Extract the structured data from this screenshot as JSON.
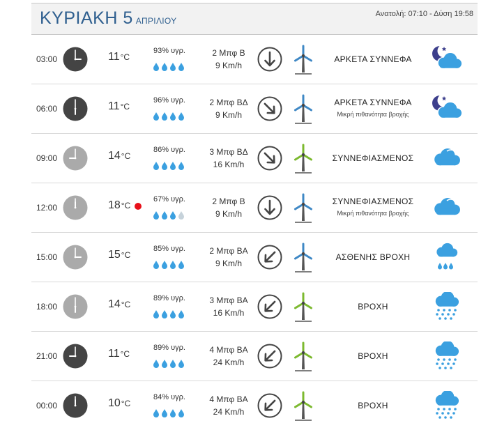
{
  "header": {
    "day": "ΚΥΡΙΑΚΗ 5",
    "month": "ΑΠΡΙΛΙΟΥ",
    "sun": "Ανατολή: 07:10 - Δύση 19:58"
  },
  "colors": {
    "title": "#2f5f8f",
    "clock_night": "#444444",
    "clock_day": "#aaaaaa",
    "drop": "#3ba0e0",
    "drop_empty": "#c6d2da",
    "turbine_blue": "#3f88c5",
    "turbine_green": "#7cb92f",
    "cloud": "#3ba0e0",
    "moon": "#3d3f8c",
    "hot": "#e8101a"
  },
  "units": {
    "celsius": "°C"
  },
  "rows": [
    {
      "time": "03:00",
      "clock_icon": "clock-night-icon",
      "hour": 3,
      "temp": "11",
      "hot": false,
      "humidity": "93% υγρ.",
      "drops": 4,
      "beaufort": "2 Μπφ Β",
      "speed": "9 Km/h",
      "arrow_icon": "arrow-down-icon",
      "arrow_deg": 0,
      "turbine": "blue",
      "condition": "ΑΡΚΕΤΑ ΣΥΝΝΕΦΑ",
      "note": "",
      "weather_icon": "night-cloud-icon"
    },
    {
      "time": "06:00",
      "clock_icon": "clock-night-icon",
      "hour": 6,
      "temp": "11",
      "hot": false,
      "humidity": "96% υγρ.",
      "drops": 4,
      "beaufort": "2 Μπφ ΒΔ",
      "speed": "9 Km/h",
      "arrow_icon": "arrow-down-right-icon",
      "arrow_deg": -45,
      "turbine": "blue",
      "condition": "ΑΡΚΕΤΑ ΣΥΝΝΕΦΑ",
      "note": "Μικρή πιθανότητα βροχής",
      "weather_icon": "night-cloud-icon"
    },
    {
      "time": "09:00",
      "clock_icon": "clock-day-icon",
      "hour": 9,
      "temp": "14",
      "hot": false,
      "humidity": "86% υγρ.",
      "drops": 4,
      "beaufort": "3 Μπφ ΒΔ",
      "speed": "16 Km/h",
      "arrow_icon": "arrow-down-right-icon",
      "arrow_deg": -45,
      "turbine": "green",
      "condition": "ΣΥΝΝΕΦΙΑΣΜΕΝΟΣ",
      "note": "",
      "weather_icon": "cloud-icon"
    },
    {
      "time": "12:00",
      "clock_icon": "clock-day-icon",
      "hour": 12,
      "temp": "18",
      "hot": true,
      "humidity": "67% υγρ.",
      "drops": 3,
      "beaufort": "2 Μπφ Β",
      "speed": "9 Km/h",
      "arrow_icon": "arrow-down-icon",
      "arrow_deg": 0,
      "turbine": "blue",
      "condition": "ΣΥΝΝΕΦΙΑΣΜΕΝΟΣ",
      "note": "Μικρή πιθανότητα βροχής",
      "weather_icon": "cloud-icon"
    },
    {
      "time": "15:00",
      "clock_icon": "clock-day-icon",
      "hour": 3,
      "temp": "15",
      "hot": false,
      "humidity": "85% υγρ.",
      "drops": 4,
      "beaufort": "2 Μπφ ΒΑ",
      "speed": "9 Km/h",
      "arrow_icon": "arrow-down-left-icon",
      "arrow_deg": 45,
      "turbine": "blue",
      "condition": "ΑΣΘΕΝΗΣ ΒΡΟΧΗ",
      "note": "",
      "weather_icon": "light-rain-icon"
    },
    {
      "time": "18:00",
      "clock_icon": "clock-day-icon",
      "hour": 6,
      "temp": "14",
      "hot": false,
      "humidity": "89% υγρ.",
      "drops": 4,
      "beaufort": "3 Μπφ ΒΑ",
      "speed": "16 Km/h",
      "arrow_icon": "arrow-down-left-icon",
      "arrow_deg": 45,
      "turbine": "green",
      "condition": "ΒΡΟΧΗ",
      "note": "",
      "weather_icon": "rain-icon"
    },
    {
      "time": "21:00",
      "clock_icon": "clock-night-icon",
      "hour": 9,
      "temp": "11",
      "hot": false,
      "humidity": "89% υγρ.",
      "drops": 4,
      "beaufort": "4 Μπφ ΒΑ",
      "speed": "24 Km/h",
      "arrow_icon": "arrow-down-left-icon",
      "arrow_deg": 45,
      "turbine": "green",
      "condition": "ΒΡΟΧΗ",
      "note": "",
      "weather_icon": "rain-icon"
    },
    {
      "time": "00:00",
      "clock_icon": "clock-night-icon",
      "hour": 12,
      "temp": "10",
      "hot": false,
      "humidity": "84% υγρ.",
      "drops": 4,
      "beaufort": "4 Μπφ ΒΑ",
      "speed": "24 Km/h",
      "arrow_icon": "arrow-down-left-icon",
      "arrow_deg": 45,
      "turbine": "green",
      "condition": "ΒΡΟΧΗ",
      "note": "",
      "weather_icon": "rain-icon"
    }
  ]
}
